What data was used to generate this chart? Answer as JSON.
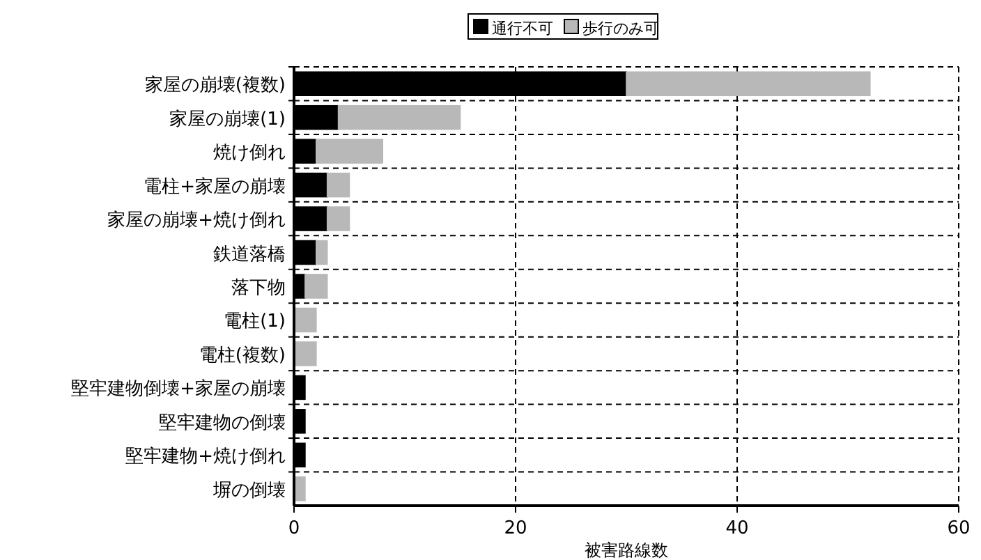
{
  "chart_data": {
    "type": "bar",
    "orientation": "horizontal",
    "stacked": true,
    "categories": [
      "家屋の崩壊(複数)",
      "家屋の崩壊(1)",
      "焼け倒れ",
      "電柱+家屋の崩壊",
      "家屋の崩壊+焼け倒れ",
      "鉄道落橋",
      "落下物",
      "電柱(1)",
      "電柱(複数)",
      "堅牢建物倒壊+家屋の崩壊",
      "堅牢建物の倒壊",
      "堅牢建物+焼け倒れ",
      "塀の倒壊"
    ],
    "series": [
      {
        "name": "通行不可",
        "color": "#000000",
        "values": [
          30,
          4,
          2,
          3,
          3,
          2,
          1,
          0,
          0,
          1,
          1,
          1,
          0
        ]
      },
      {
        "name": "歩行のみ可",
        "color": "#b8b8b8",
        "values": [
          22,
          11,
          6,
          2,
          2,
          1,
          2,
          2,
          2,
          0,
          0,
          0,
          1
        ]
      }
    ],
    "xlabel": "被害路線数",
    "xlim": [
      0,
      60
    ],
    "xticks": [
      0,
      20,
      40,
      60
    ],
    "grid": true,
    "legend": "top"
  }
}
